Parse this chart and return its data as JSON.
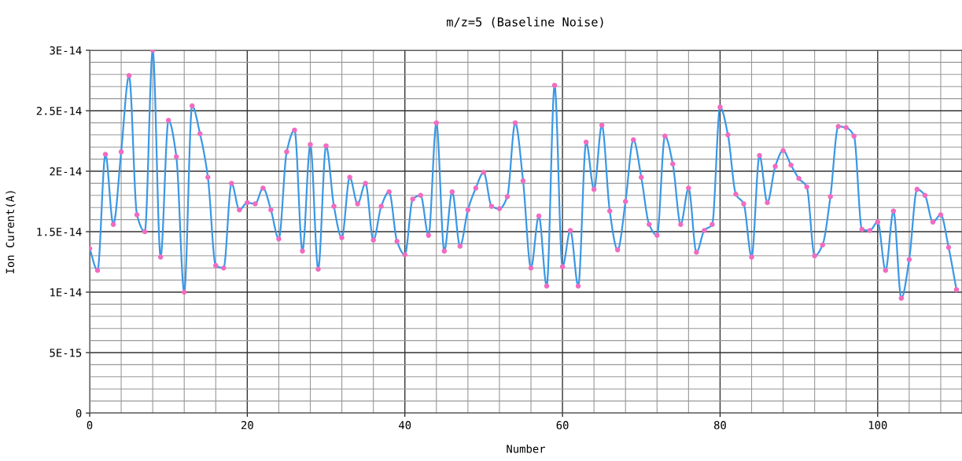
{
  "chart_data": {
    "type": "line",
    "title": "m/z=5 (Baseline Noise)",
    "xlabel": "Number",
    "ylabel": "Ion Curent(A)",
    "x": [
      0,
      1,
      2,
      3,
      4,
      5,
      6,
      7,
      8,
      9,
      10,
      11,
      12,
      13,
      14,
      15,
      16,
      17,
      18,
      19,
      20,
      21,
      22,
      23,
      24,
      25,
      26,
      27,
      28,
      29,
      30,
      31,
      32,
      33,
      34,
      35,
      36,
      37,
      38,
      39,
      40,
      41,
      42,
      43,
      44,
      45,
      46,
      47,
      48,
      49,
      50,
      51,
      52,
      53,
      54,
      55,
      56,
      57,
      58,
      59,
      60,
      61,
      62,
      63,
      64,
      65,
      66,
      67,
      68,
      69,
      70,
      71,
      72,
      73,
      74,
      75,
      76,
      77,
      78,
      79,
      80,
      81,
      82,
      83,
      84,
      85,
      86,
      87,
      88,
      89,
      90,
      91,
      92,
      93,
      94,
      95,
      96,
      97,
      98,
      99,
      100,
      101,
      102,
      103,
      104,
      105,
      106,
      107,
      108,
      109,
      110
    ],
    "series": [
      {
        "color": "#3a98e6",
        "values": [
          1.36e-14,
          1.18e-14,
          2.14e-14,
          1.56e-14,
          2.16e-14,
          2.79e-14,
          1.64e-14,
          1.5e-14,
          3e-14,
          1.29e-14,
          2.42e-14,
          2.12e-14,
          1e-14,
          2.54e-14,
          2.31e-14,
          1.95e-14,
          1.22e-14,
          1.2e-14,
          1.9e-14,
          1.68e-14,
          1.74e-14,
          1.73e-14,
          1.86e-14,
          1.68e-14,
          1.44e-14,
          2.16e-14,
          2.34e-14,
          1.34e-14,
          2.22e-14,
          1.19e-14,
          2.21e-14,
          1.71e-14,
          1.45e-14,
          1.95e-14,
          1.73e-14,
          1.9e-14,
          1.43e-14,
          1.71e-14,
          1.83e-14,
          1.42e-14,
          1.31e-14,
          1.77e-14,
          1.8e-14,
          1.47e-14,
          2.4e-14,
          1.34e-14,
          1.83e-14,
          1.38e-14,
          1.68e-14,
          1.86e-14,
          1.99e-14,
          1.71e-14,
          1.69e-14,
          1.79e-14,
          2.4e-14,
          1.92e-14,
          1.2e-14,
          1.63e-14,
          1.05e-14,
          2.71e-14,
          1.21e-14,
          1.51e-14,
          1.05e-14,
          2.24e-14,
          1.85e-14,
          2.38e-14,
          1.67e-14,
          1.35e-14,
          1.75e-14,
          2.26e-14,
          1.95e-14,
          1.56e-14,
          1.47e-14,
          2.29e-14,
          2.06e-14,
          1.56e-14,
          1.86e-14,
          1.33e-14,
          1.51e-14,
          1.56e-14,
          2.53e-14,
          2.3e-14,
          1.81e-14,
          1.73e-14,
          1.29e-14,
          2.13e-14,
          1.74e-14,
          2.04e-14,
          2.17e-14,
          2.05e-14,
          1.94e-14,
          1.87e-14,
          1.3e-14,
          1.39e-14,
          1.79e-14,
          2.37e-14,
          2.36e-14,
          2.29e-14,
          1.52e-14,
          1.51e-14,
          1.58e-14,
          1.18e-14,
          1.67e-14,
          9.5e-15,
          1.27e-14,
          1.85e-14,
          1.8e-14,
          1.58e-14,
          1.64e-14,
          1.37e-14,
          1.02e-14
        ]
      },
      {
        "type": "scatter",
        "color": "#f06cc0",
        "marker": "circle",
        "values": [
          1.36e-14,
          1.18e-14,
          2.14e-14,
          1.56e-14,
          2.16e-14,
          2.79e-14,
          1.64e-14,
          1.5e-14,
          3e-14,
          1.29e-14,
          2.42e-14,
          2.12e-14,
          1e-14,
          2.54e-14,
          2.31e-14,
          1.95e-14,
          1.22e-14,
          1.2e-14,
          1.9e-14,
          1.68e-14,
          1.74e-14,
          1.73e-14,
          1.86e-14,
          1.68e-14,
          1.44e-14,
          2.16e-14,
          2.34e-14,
          1.34e-14,
          2.22e-14,
          1.19e-14,
          2.21e-14,
          1.71e-14,
          1.45e-14,
          1.95e-14,
          1.73e-14,
          1.9e-14,
          1.43e-14,
          1.71e-14,
          1.83e-14,
          1.42e-14,
          1.31e-14,
          1.77e-14,
          1.8e-14,
          1.47e-14,
          2.4e-14,
          1.34e-14,
          1.83e-14,
          1.38e-14,
          1.68e-14,
          1.86e-14,
          1.99e-14,
          1.71e-14,
          1.69e-14,
          1.79e-14,
          2.4e-14,
          1.92e-14,
          1.2e-14,
          1.63e-14,
          1.05e-14,
          2.71e-14,
          1.21e-14,
          1.51e-14,
          1.05e-14,
          2.24e-14,
          1.85e-14,
          2.38e-14,
          1.67e-14,
          1.35e-14,
          1.75e-14,
          2.26e-14,
          1.95e-14,
          1.56e-14,
          1.47e-14,
          2.29e-14,
          2.06e-14,
          1.56e-14,
          1.86e-14,
          1.33e-14,
          1.51e-14,
          1.56e-14,
          2.53e-14,
          2.3e-14,
          1.81e-14,
          1.73e-14,
          1.29e-14,
          2.13e-14,
          1.74e-14,
          2.04e-14,
          2.17e-14,
          2.05e-14,
          1.94e-14,
          1.87e-14,
          1.3e-14,
          1.39e-14,
          1.79e-14,
          2.37e-14,
          2.36e-14,
          2.29e-14,
          1.52e-14,
          1.51e-14,
          1.58e-14,
          1.18e-14,
          1.67e-14,
          9.5e-15,
          1.27e-14,
          1.85e-14,
          1.8e-14,
          1.58e-14,
          1.64e-14,
          1.37e-14,
          1.02e-14
        ]
      }
    ],
    "xlim": [
      0,
      110.7
    ],
    "xticks": [
      0,
      20,
      40,
      60,
      80,
      100
    ],
    "ylim": [
      0,
      3e-14
    ],
    "yticks": [
      {
        "value": 0,
        "label": "0"
      },
      {
        "value": 5e-15,
        "label": "5E-15"
      },
      {
        "value": 1e-14,
        "label": "1E-14"
      },
      {
        "value": 1.5e-14,
        "label": "1.5E-14"
      },
      {
        "value": 2e-14,
        "label": "2E-14"
      },
      {
        "value": 2.5e-14,
        "label": "2.5E-14"
      },
      {
        "value": 3e-14,
        "label": "3E-14"
      }
    ],
    "grid": true
  }
}
